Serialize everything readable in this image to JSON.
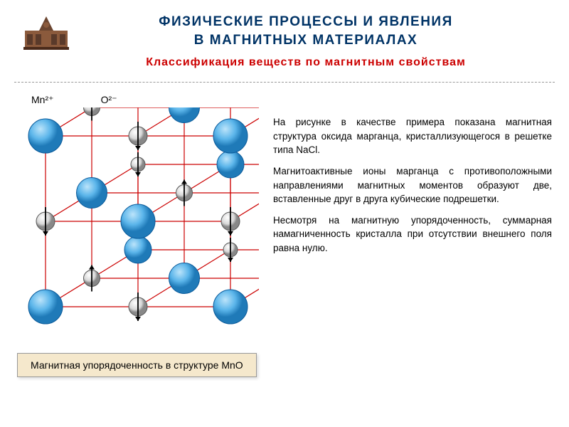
{
  "header": {
    "title_line1": "ФИЗИЧЕСКИЕ ПРОЦЕССЫ И ЯВЛЕНИЯ",
    "title_line2": "В МАГНИТНЫХ МАТЕРИАЛАХ",
    "subtitle": "Классификация веществ по магнитным свойствам",
    "title_color": "#003366",
    "subtitle_color": "#cc0000"
  },
  "diagram": {
    "type": "infographic",
    "label_mn": "Mn²⁺",
    "label_o": "O²⁻",
    "lattice_color": "#cc0000",
    "large_sphere": {
      "fill": "#5bb5ea",
      "stroke": "#0a5a9a",
      "radius_front": 24,
      "radius_back": 19
    },
    "small_sphere": {
      "fill": "#d8d8d8",
      "stroke": "#555555",
      "radius_front": 13,
      "radius_back": 10
    },
    "arrow_color": "#000000",
    "background_color": "#ffffff",
    "cube_size": 260
  },
  "body": {
    "p1": "На рисунке в качестве примера показана магнитная структура оксида марганца, кристаллизующегося в решетке типа NaCl.",
    "p2": "Магнитоактивные ионы марганца с противоположными направлениями магнитных моментов образуют две, вставленные друг в друга кубические подрешетки.",
    "p3": "Несмотря на магнитную упорядоченность, суммарная намагниченность кристалла при отсутствии внешнего поля равна нулю."
  },
  "caption": {
    "text": "Магнитная упорядоченность в структуре MnO",
    "bg_color": "#f5e8cc",
    "border_color": "#999999"
  }
}
